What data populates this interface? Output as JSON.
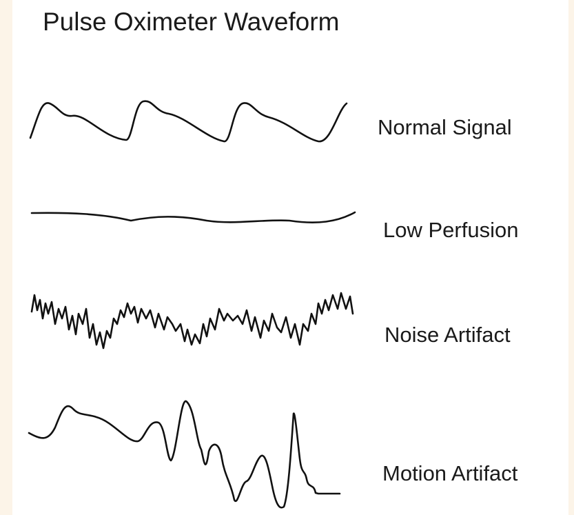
{
  "header": {
    "title": "Pulse Oximeter Waveform"
  },
  "waveforms": [
    {
      "label": "Normal Signal"
    },
    {
      "label": "Low Perfusion"
    },
    {
      "label": "Noise Artifact"
    },
    {
      "label": "Motion Artifact"
    }
  ]
}
